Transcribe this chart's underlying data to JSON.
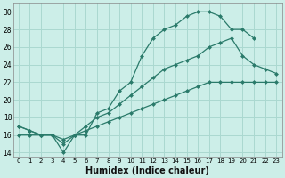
{
  "xlabel": "Humidex (Indice chaleur)",
  "bg_color": "#cceee8",
  "grid_color": "#aad8d0",
  "line_color": "#2a7a6a",
  "xlim": [
    -0.5,
    23.5
  ],
  "ylim": [
    13.5,
    31.0
  ],
  "xticks": [
    0,
    1,
    2,
    3,
    4,
    5,
    6,
    7,
    8,
    9,
    10,
    11,
    12,
    13,
    14,
    15,
    16,
    17,
    18,
    19,
    20,
    21,
    22,
    23
  ],
  "yticks": [
    14,
    16,
    18,
    20,
    22,
    24,
    26,
    28,
    30
  ],
  "line1_x": [
    0,
    1,
    2,
    3,
    4,
    5,
    6,
    7,
    8,
    9,
    10,
    11,
    12,
    13,
    14,
    15,
    16,
    17,
    18,
    19,
    20,
    21
  ],
  "line1_y": [
    17,
    16.5,
    16,
    16,
    14,
    16,
    16,
    18.5,
    19,
    21,
    22,
    25,
    27,
    28,
    28.5,
    29.5,
    30,
    30,
    29.5,
    28,
    28,
    27
  ],
  "line2_x": [
    0,
    1,
    2,
    3,
    4,
    5,
    6,
    7,
    8,
    9,
    10,
    11,
    12,
    13,
    14,
    15,
    16,
    17,
    18,
    19,
    20,
    21,
    22,
    23
  ],
  "line2_y": [
    17,
    16.5,
    16,
    16,
    15,
    16,
    17,
    18,
    18.5,
    19.5,
    20.5,
    21.5,
    22.5,
    23.5,
    24,
    24.5,
    25,
    26,
    26.5,
    27,
    25,
    24,
    23.5,
    23
  ],
  "line3_x": [
    0,
    1,
    2,
    3,
    4,
    5,
    6,
    7,
    8,
    9,
    10,
    11,
    12,
    13,
    14,
    15,
    16,
    17,
    18,
    19,
    20,
    21,
    22,
    23
  ],
  "line3_y": [
    16,
    16,
    16,
    16,
    15.5,
    16,
    16.5,
    17,
    17.5,
    18,
    18.5,
    19,
    19.5,
    20,
    20.5,
    21,
    21.5,
    22,
    22,
    22,
    22,
    22,
    22,
    22
  ],
  "marker_size": 2.5,
  "linewidth": 0.9
}
